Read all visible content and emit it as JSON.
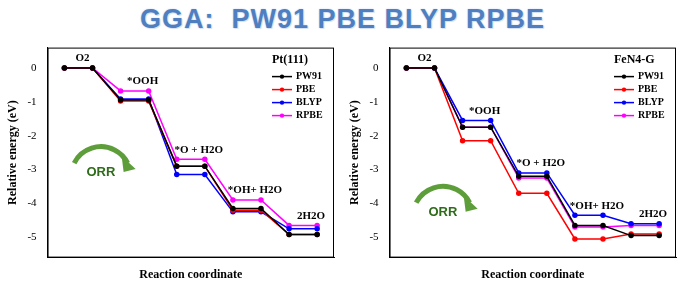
{
  "title": "GGA:  PW91 PBE BLYP RPBE",
  "chart_data": [
    {
      "type": "line",
      "title": "Pt(111)",
      "x_label": "Reaction coordinate",
      "y_label": "Relative energy (eV)",
      "categories": [
        "O2",
        "*OOH",
        "*O + H2O",
        "*OH+ H2O",
        "2H2O"
      ],
      "series": [
        {
          "name": "PW91",
          "color": "#000000",
          "values": [
            0,
            -0.95,
            -2.9,
            -4.15,
            -4.92
          ]
        },
        {
          "name": "PBE",
          "color": "#ff0000",
          "values": [
            0,
            -0.98,
            -2.9,
            -4.2,
            -4.92
          ]
        },
        {
          "name": "BLYP",
          "color": "#0000ff",
          "values": [
            0,
            -0.92,
            -3.15,
            -4.25,
            -4.75
          ]
        },
        {
          "name": "RPBE",
          "color": "#ff00ff",
          "values": [
            0,
            -0.68,
            -2.7,
            -3.9,
            -4.65
          ]
        }
      ],
      "ylim": [
        -5.6,
        0.6
      ],
      "yticks": [
        -5,
        -4,
        -3,
        -2,
        -1,
        0
      ],
      "grid": false,
      "legend": "upper right",
      "tick_labels": "y",
      "marker": "circle",
      "annotations": [
        "ORR"
      ]
    },
    {
      "type": "line",
      "title": "FeN4-G",
      "x_label": "Reaction coordinate",
      "y_label": "Relative energy (eV)",
      "categories": [
        "O2",
        "*OOH",
        "*O + H2O",
        "*OH+ H2O",
        "2H2O"
      ],
      "series": [
        {
          "name": "PW91",
          "color": "#000000",
          "values": [
            0,
            -1.75,
            -3.2,
            -4.65,
            -4.95
          ]
        },
        {
          "name": "PBE",
          "color": "#ff0000",
          "values": [
            0,
            -2.15,
            -3.7,
            -5.05,
            -4.9
          ]
        },
        {
          "name": "BLYP",
          "color": "#0000ff",
          "values": [
            0,
            -1.55,
            -3.1,
            -4.35,
            -4.6
          ]
        },
        {
          "name": "RPBE",
          "color": "#ff00ff",
          "values": [
            0,
            -1.75,
            -3.25,
            -4.7,
            -4.65
          ]
        }
      ],
      "ylim": [
        -5.6,
        0.6
      ],
      "yticks": [
        -5,
        -4,
        -3,
        -2,
        -1,
        0
      ],
      "grid": false,
      "legend": "upper right",
      "tick_labels": "y",
      "marker": "circle",
      "annotations": [
        "ORR"
      ]
    }
  ]
}
